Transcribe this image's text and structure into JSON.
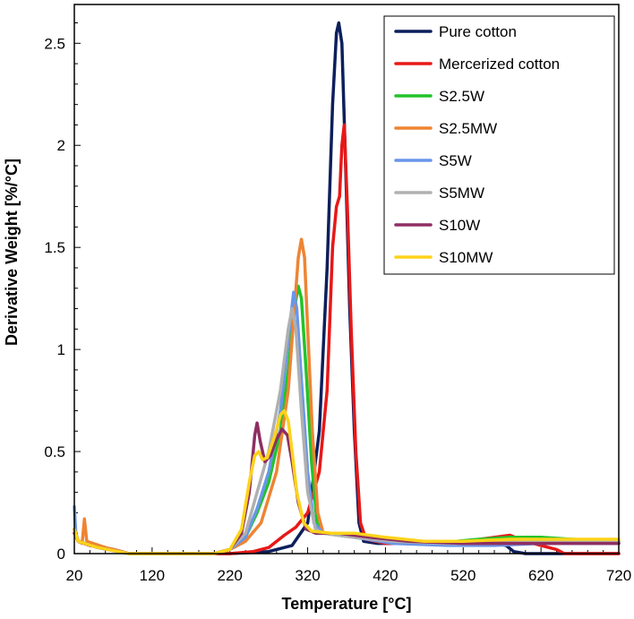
{
  "chart_data": {
    "type": "line",
    "title": "",
    "xlabel": "Temperature [°C]",
    "ylabel": "Derivative Weight [%/°C]",
    "xlim": [
      20,
      720
    ],
    "ylim": [
      0,
      2.6
    ],
    "xticks": [
      20,
      120,
      220,
      320,
      420,
      520,
      620,
      720
    ],
    "xtick_labels": [
      "20",
      "120",
      "220",
      "320",
      "420",
      "520",
      "620",
      "720"
    ],
    "yticks": [
      0,
      0.5,
      1,
      1.5,
      2,
      2.5
    ],
    "ytick_labels": [
      "0",
      "0.5",
      "1",
      "1.5",
      "2",
      "2.5"
    ],
    "grid": false,
    "legend_position": "top-right",
    "series": [
      {
        "name": "Pure cotton",
        "color": "#0d1f5c",
        "points": [
          [
            20,
            0.12
          ],
          [
            25,
            0.06
          ],
          [
            40,
            0.04
          ],
          [
            70,
            0.02
          ],
          [
            90,
            0.0
          ],
          [
            220,
            0.0
          ],
          [
            270,
            0.01
          ],
          [
            300,
            0.04
          ],
          [
            320,
            0.15
          ],
          [
            335,
            0.6
          ],
          [
            345,
            1.4
          ],
          [
            352,
            2.2
          ],
          [
            357,
            2.55
          ],
          [
            360,
            2.6
          ],
          [
            364,
            2.5
          ],
          [
            368,
            2.0
          ],
          [
            374,
            1.2
          ],
          [
            380,
            0.6
          ],
          [
            386,
            0.15
          ],
          [
            392,
            0.06
          ],
          [
            410,
            0.05
          ],
          [
            450,
            0.05
          ],
          [
            500,
            0.05
          ],
          [
            560,
            0.05
          ],
          [
            575,
            0.04
          ],
          [
            585,
            0.01
          ],
          [
            600,
            0.0
          ],
          [
            720,
            0.0
          ]
        ]
      },
      {
        "name": "Mercerized cotton",
        "color": "#e81818",
        "points": [
          [
            20,
            0.1
          ],
          [
            25,
            0.06
          ],
          [
            40,
            0.04
          ],
          [
            70,
            0.02
          ],
          [
            90,
            0.0
          ],
          [
            220,
            0.0
          ],
          [
            250,
            0.01
          ],
          [
            270,
            0.03
          ],
          [
            290,
            0.09
          ],
          [
            305,
            0.13
          ],
          [
            320,
            0.2
          ],
          [
            335,
            0.4
          ],
          [
            345,
            0.8
          ],
          [
            352,
            1.5
          ],
          [
            357,
            1.7
          ],
          [
            361,
            1.75
          ],
          [
            364,
            2.0
          ],
          [
            367,
            2.1
          ],
          [
            371,
            1.7
          ],
          [
            376,
            1.1
          ],
          [
            382,
            0.5
          ],
          [
            388,
            0.15
          ],
          [
            395,
            0.07
          ],
          [
            420,
            0.05
          ],
          [
            470,
            0.05
          ],
          [
            520,
            0.06
          ],
          [
            560,
            0.08
          ],
          [
            580,
            0.09
          ],
          [
            600,
            0.06
          ],
          [
            620,
            0.04
          ],
          [
            640,
            0.02
          ],
          [
            650,
            0.0
          ],
          [
            720,
            0.0
          ]
        ]
      },
      {
        "name": "S2.5W",
        "color": "#22c32a",
        "points": [
          [
            20,
            0.12
          ],
          [
            25,
            0.06
          ],
          [
            50,
            0.03
          ],
          [
            90,
            0.0
          ],
          [
            200,
            0.0
          ],
          [
            220,
            0.02
          ],
          [
            240,
            0.08
          ],
          [
            255,
            0.2
          ],
          [
            270,
            0.35
          ],
          [
            285,
            0.6
          ],
          [
            295,
            0.9
          ],
          [
            303,
            1.2
          ],
          [
            308,
            1.31
          ],
          [
            312,
            1.25
          ],
          [
            318,
            0.9
          ],
          [
            325,
            0.45
          ],
          [
            332,
            0.15
          ],
          [
            340,
            0.1
          ],
          [
            380,
            0.08
          ],
          [
            420,
            0.06
          ],
          [
            480,
            0.05
          ],
          [
            540,
            0.07
          ],
          [
            580,
            0.08
          ],
          [
            620,
            0.08
          ],
          [
            660,
            0.07
          ],
          [
            720,
            0.06
          ]
        ]
      },
      {
        "name": "S2.5MW",
        "color": "#ee8433",
        "points": [
          [
            20,
            0.12
          ],
          [
            25,
            0.06
          ],
          [
            30,
            0.05
          ],
          [
            33,
            0.17
          ],
          [
            36,
            0.06
          ],
          [
            60,
            0.03
          ],
          [
            90,
            0.0
          ],
          [
            200,
            0.0
          ],
          [
            220,
            0.02
          ],
          [
            240,
            0.06
          ],
          [
            260,
            0.15
          ],
          [
            280,
            0.4
          ],
          [
            295,
            0.8
          ],
          [
            303,
            1.2
          ],
          [
            308,
            1.45
          ],
          [
            312,
            1.54
          ],
          [
            316,
            1.45
          ],
          [
            320,
            1.1
          ],
          [
            326,
            0.6
          ],
          [
            333,
            0.2
          ],
          [
            340,
            0.1
          ],
          [
            380,
            0.08
          ],
          [
            430,
            0.06
          ],
          [
            480,
            0.05
          ],
          [
            540,
            0.06
          ],
          [
            600,
            0.07
          ],
          [
            650,
            0.06
          ],
          [
            720,
            0.06
          ]
        ]
      },
      {
        "name": "S5W",
        "color": "#6a96e8",
        "points": [
          [
            20,
            0.23
          ],
          [
            22,
            0.1
          ],
          [
            25,
            0.06
          ],
          [
            50,
            0.03
          ],
          [
            90,
            0.0
          ],
          [
            200,
            0.0
          ],
          [
            220,
            0.02
          ],
          [
            240,
            0.08
          ],
          [
            255,
            0.22
          ],
          [
            270,
            0.4
          ],
          [
            285,
            0.7
          ],
          [
            295,
            1.05
          ],
          [
            302,
            1.28
          ],
          [
            306,
            1.2
          ],
          [
            312,
            0.85
          ],
          [
            320,
            0.4
          ],
          [
            328,
            0.15
          ],
          [
            340,
            0.1
          ],
          [
            380,
            0.08
          ],
          [
            430,
            0.05
          ],
          [
            500,
            0.04
          ],
          [
            560,
            0.04
          ],
          [
            620,
            0.05
          ],
          [
            720,
            0.05
          ]
        ]
      },
      {
        "name": "S5MW",
        "color": "#b0b0b0",
        "points": [
          [
            20,
            0.12
          ],
          [
            25,
            0.06
          ],
          [
            50,
            0.03
          ],
          [
            90,
            0.0
          ],
          [
            200,
            0.0
          ],
          [
            220,
            0.02
          ],
          [
            240,
            0.1
          ],
          [
            255,
            0.3
          ],
          [
            270,
            0.5
          ],
          [
            285,
            0.8
          ],
          [
            295,
            1.1
          ],
          [
            300,
            1.2
          ],
          [
            305,
            1.1
          ],
          [
            312,
            0.7
          ],
          [
            320,
            0.3
          ],
          [
            330,
            0.12
          ],
          [
            340,
            0.1
          ],
          [
            380,
            0.08
          ],
          [
            430,
            0.06
          ],
          [
            500,
            0.05
          ],
          [
            560,
            0.05
          ],
          [
            620,
            0.06
          ],
          [
            720,
            0.06
          ]
        ]
      },
      {
        "name": "S10W",
        "color": "#8e2e62",
        "points": [
          [
            20,
            0.12
          ],
          [
            25,
            0.06
          ],
          [
            50,
            0.03
          ],
          [
            90,
            0.0
          ],
          [
            200,
            0.0
          ],
          [
            220,
            0.02
          ],
          [
            235,
            0.1
          ],
          [
            245,
            0.3
          ],
          [
            252,
            0.58
          ],
          [
            255,
            0.64
          ],
          [
            259,
            0.55
          ],
          [
            265,
            0.45
          ],
          [
            272,
            0.48
          ],
          [
            280,
            0.56
          ],
          [
            287,
            0.61
          ],
          [
            294,
            0.58
          ],
          [
            300,
            0.45
          ],
          [
            308,
            0.25
          ],
          [
            318,
            0.12
          ],
          [
            330,
            0.1
          ],
          [
            360,
            0.1
          ],
          [
            400,
            0.08
          ],
          [
            450,
            0.06
          ],
          [
            520,
            0.05
          ],
          [
            600,
            0.05
          ],
          [
            720,
            0.05
          ]
        ]
      },
      {
        "name": "S10MW",
        "color": "#fdd319",
        "points": [
          [
            20,
            0.12
          ],
          [
            25,
            0.06
          ],
          [
            50,
            0.03
          ],
          [
            90,
            0.0
          ],
          [
            200,
            0.0
          ],
          [
            220,
            0.02
          ],
          [
            235,
            0.12
          ],
          [
            245,
            0.35
          ],
          [
            252,
            0.48
          ],
          [
            257,
            0.5
          ],
          [
            262,
            0.46
          ],
          [
            268,
            0.47
          ],
          [
            278,
            0.58
          ],
          [
            285,
            0.68
          ],
          [
            290,
            0.7
          ],
          [
            295,
            0.65
          ],
          [
            300,
            0.5
          ],
          [
            306,
            0.3
          ],
          [
            315,
            0.15
          ],
          [
            325,
            0.11
          ],
          [
            350,
            0.1
          ],
          [
            380,
            0.1
          ],
          [
            420,
            0.08
          ],
          [
            470,
            0.06
          ],
          [
            520,
            0.06
          ],
          [
            580,
            0.07
          ],
          [
            640,
            0.07
          ],
          [
            720,
            0.07
          ]
        ]
      }
    ]
  }
}
